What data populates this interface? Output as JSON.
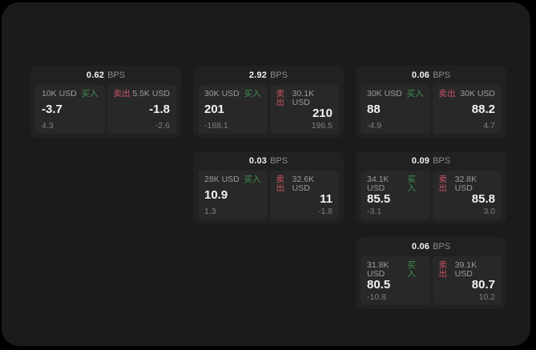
{
  "theme": {
    "page_bg": "#000000",
    "window_bg": "#1b1b1b",
    "card_bg": "#212121",
    "panel_bg": "#282828",
    "buy_color": "#3f9150",
    "sell_color": "#c75565",
    "text_primary": "#f2f2f2",
    "text_muted": "#8f8f8f"
  },
  "cards": [
    {
      "bps_value": "0.62",
      "bps_unit": "BPS",
      "buy": {
        "size": "10K USD",
        "side": "买入",
        "price": "-3.7",
        "delta": "4.3"
      },
      "sell": {
        "side": "卖出",
        "size": "5.5K USD",
        "price": "-1.8",
        "delta": "-2.6"
      }
    },
    {
      "bps_value": "2.92",
      "bps_unit": "BPS",
      "buy": {
        "size": "30K USD",
        "side": "买入",
        "price": "201",
        "delta": "-188.1"
      },
      "sell": {
        "side": "卖出",
        "size": "30.1K USD",
        "price": "210",
        "delta": "196.5"
      }
    },
    {
      "bps_value": "0.06",
      "bps_unit": "BPS",
      "buy": {
        "size": "30K USD",
        "side": "买入",
        "price": "88",
        "delta": "-4.9"
      },
      "sell": {
        "side": "卖出",
        "size": "30K USD",
        "price": "88.2",
        "delta": "4.7"
      }
    },
    {
      "bps_value": "0.03",
      "bps_unit": "BPS",
      "buy": {
        "size": "28K USD",
        "side": "买入",
        "price": "10.9",
        "delta": "1.3"
      },
      "sell": {
        "side": "卖出",
        "size": "32.6K USD",
        "price": "11",
        "delta": "-1.8"
      }
    },
    {
      "bps_value": "0.09",
      "bps_unit": "BPS",
      "buy": {
        "size": "34.1K USD",
        "side": "买入",
        "price": "85.5",
        "delta": "-3.1"
      },
      "sell": {
        "side": "卖出",
        "size": "32.8K USD",
        "price": "85.8",
        "delta": "3.0"
      }
    },
    {
      "bps_value": "0.06",
      "bps_unit": "BPS",
      "buy": {
        "size": "31.8K USD",
        "side": "买入",
        "price": "80.5",
        "delta": "-10.8"
      },
      "sell": {
        "side": "卖出",
        "size": "39.1K USD",
        "price": "80.7",
        "delta": "10.2"
      }
    }
  ]
}
